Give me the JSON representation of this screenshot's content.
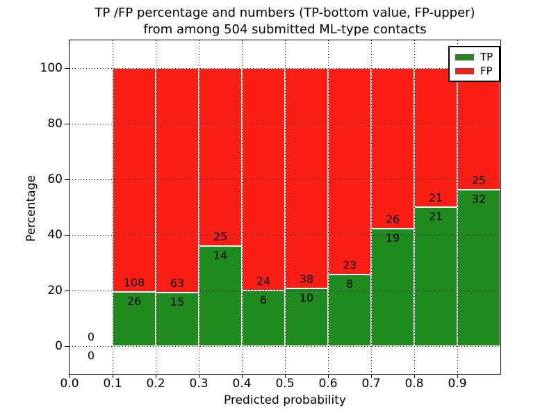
{
  "chart_data": {
    "type": "bar",
    "stacked": true,
    "title_line1": "TP /FP percentage and numbers (TP-bottom value, FP-upper)",
    "title_line2": "from among 504 submitted ML-type contacts",
    "xlabel": "Predicted probability",
    "ylabel": "Percentage",
    "total_contacts": 504,
    "xlim": [
      0.0,
      1.0
    ],
    "ylim": [
      -10,
      110
    ],
    "bin_width": 0.1,
    "x_ticks": [
      "0.0",
      "0.1",
      "0.2",
      "0.3",
      "0.4",
      "0.5",
      "0.6",
      "0.7",
      "0.8",
      "0.9"
    ],
    "y_ticks": [
      "0",
      "20",
      "40",
      "60",
      "80",
      "100"
    ],
    "grid": "dotted",
    "note": "bars show percentage split; labels are raw counts (TP bottom number, FP upper number)",
    "bins": [
      {
        "x_start": 0.0,
        "tp": 0,
        "fp": 0
      },
      {
        "x_start": 0.1,
        "tp": 26,
        "fp": 108
      },
      {
        "x_start": 0.2,
        "tp": 15,
        "fp": 63
      },
      {
        "x_start": 0.3,
        "tp": 14,
        "fp": 25
      },
      {
        "x_start": 0.4,
        "tp": 6,
        "fp": 24
      },
      {
        "x_start": 0.5,
        "tp": 10,
        "fp": 38
      },
      {
        "x_start": 0.6,
        "tp": 8,
        "fp": 23
      },
      {
        "x_start": 0.7,
        "tp": 19,
        "fp": 26
      },
      {
        "x_start": 0.8,
        "tp": 21,
        "fp": 21
      },
      {
        "x_start": 0.9,
        "tp": 32,
        "fp": 25
      }
    ],
    "colors": {
      "tp": "#1f8b1f",
      "fp": "#fa1e15",
      "grid": "#000000",
      "axes": "#000000"
    },
    "legend": {
      "position": "upper-right",
      "entries": [
        {
          "label": "TP",
          "color": "#1f8b1f"
        },
        {
          "label": "FP",
          "color": "#fa1e15"
        }
      ]
    }
  }
}
